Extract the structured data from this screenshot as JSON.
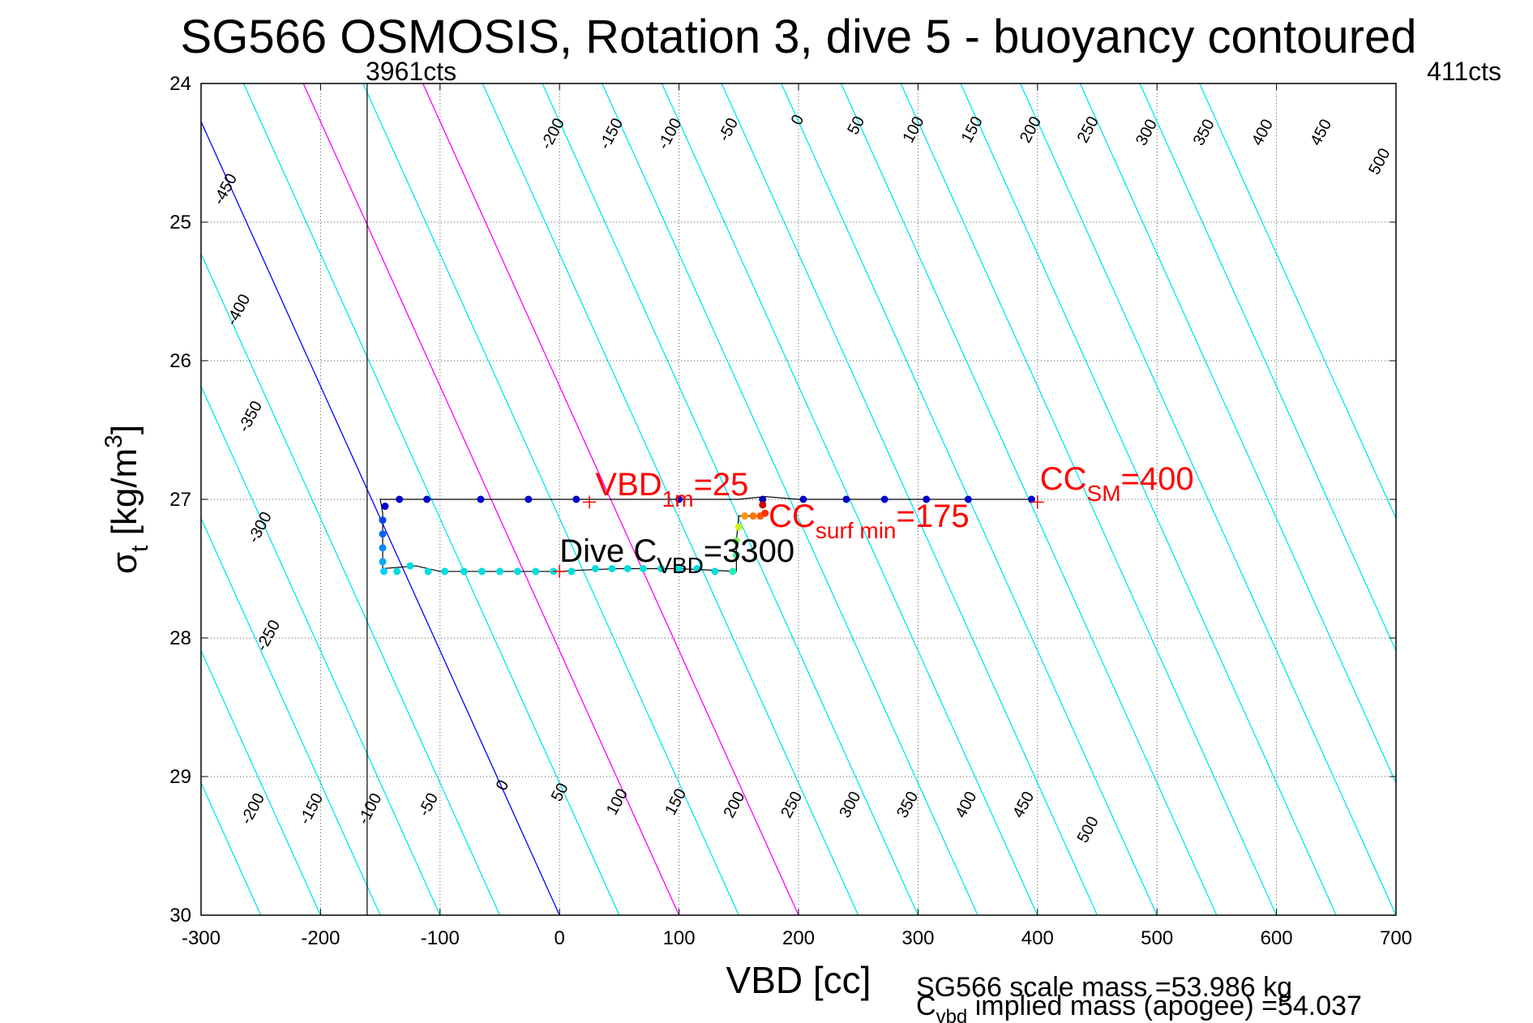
{
  "chart_data": {
    "type": "line",
    "title": "SG566 OSMOSIS, Rotation 3, dive 5 - buoyancy contoured",
    "xlabel": "VBD [cc]",
    "ylabel": {
      "main": "σ",
      "sub": "t",
      "rest": " [kg/m",
      "sup": "3",
      "end": "]"
    },
    "xlim": [
      -300,
      700
    ],
    "ylim": [
      24,
      30
    ],
    "y_reversed": true,
    "grid": true,
    "xticks": [
      -300,
      -200,
      -100,
      0,
      100,
      200,
      300,
      400,
      500,
      600,
      700
    ],
    "yticks": [
      24,
      25,
      26,
      27,
      28,
      29,
      30
    ],
    "contour_slope_cc_per_kgm3": 52.4,
    "contour_intercept_at_sigma30": 0,
    "contours": [
      {
        "value": -500,
        "color": "#00e5ee"
      },
      {
        "value": -450,
        "color": "#00e5ee"
      },
      {
        "value": -400,
        "color": "#00e5ee"
      },
      {
        "value": -350,
        "color": "#00e5ee"
      },
      {
        "value": -300,
        "color": "#00e5ee"
      },
      {
        "value": -250,
        "color": "#00e5ee"
      },
      {
        "value": -200,
        "color": "#00e5ee"
      },
      {
        "value": -150,
        "color": "#00e5ee"
      },
      {
        "value": -100,
        "color": "#00e5ee"
      },
      {
        "value": -50,
        "color": "#00e5ee"
      },
      {
        "value": 0,
        "color": "#0000ff"
      },
      {
        "value": 50,
        "color": "#00e5ee"
      },
      {
        "value": 100,
        "color": "#ff00ff"
      },
      {
        "value": 150,
        "color": "#00e5ee"
      },
      {
        "value": 200,
        "color": "#ff00ff"
      },
      {
        "value": 250,
        "color": "#00e5ee"
      },
      {
        "value": 300,
        "color": "#00e5ee"
      },
      {
        "value": 350,
        "color": "#00e5ee"
      },
      {
        "value": 400,
        "color": "#00e5ee"
      },
      {
        "value": 450,
        "color": "#00e5ee"
      },
      {
        "value": 500,
        "color": "#00e5ee"
      },
      {
        "value": 550,
        "color": "#00e5ee"
      },
      {
        "value": 600,
        "color": "#00e5ee"
      },
      {
        "value": 650,
        "color": "#00e5ee"
      },
      {
        "value": 700,
        "color": "#00e5ee"
      },
      {
        "value": 750,
        "color": "#00e5ee"
      },
      {
        "value": 800,
        "color": "#00e5ee"
      },
      {
        "value": 850,
        "color": "#00e5ee"
      }
    ],
    "contour_labels_top": [
      {
        "text": "-450",
        "x": -276,
        "y": 24.78
      },
      {
        "text": "-400",
        "x": -265,
        "y": 25.65
      },
      {
        "text": "-350",
        "x": -255,
        "y": 26.42
      },
      {
        "text": "-300",
        "x": -247,
        "y": 27.22
      },
      {
        "text": "-250",
        "x": -240,
        "y": 28.0
      },
      {
        "text": "-200",
        "x": -2,
        "y": 24.38
      },
      {
        "text": "-150",
        "x": 47,
        "y": 24.38
      },
      {
        "text": "-100",
        "x": 96,
        "y": 24.38
      },
      {
        "text": "-50",
        "x": 145,
        "y": 24.35
      },
      {
        "text": "0",
        "x": 203,
        "y": 24.28
      },
      {
        "text": "50",
        "x": 252,
        "y": 24.32
      },
      {
        "text": "100",
        "x": 300,
        "y": 24.35
      },
      {
        "text": "150",
        "x": 349,
        "y": 24.35
      },
      {
        "text": "200",
        "x": 398,
        "y": 24.35
      },
      {
        "text": "250",
        "x": 446,
        "y": 24.35
      },
      {
        "text": "300",
        "x": 495,
        "y": 24.37
      },
      {
        "text": "350",
        "x": 543,
        "y": 24.37
      },
      {
        "text": "400",
        "x": 592,
        "y": 24.37
      },
      {
        "text": "450",
        "x": 641,
        "y": 24.37
      },
      {
        "text": "500",
        "x": 690,
        "y": 24.58
      }
    ],
    "contour_labels_bottom": [
      {
        "text": "-200",
        "x": -253,
        "y": 29.25
      },
      {
        "text": "-150",
        "x": -204,
        "y": 29.25
      },
      {
        "text": "-100",
        "x": -155,
        "y": 29.25
      },
      {
        "text": "-50",
        "x": -106,
        "y": 29.22
      },
      {
        "text": "0",
        "x": -44,
        "y": 29.08
      },
      {
        "text": "50",
        "x": 4,
        "y": 29.13
      },
      {
        "text": "100",
        "x": 52,
        "y": 29.2
      },
      {
        "text": "150",
        "x": 101,
        "y": 29.2
      },
      {
        "text": "200",
        "x": 150,
        "y": 29.22
      },
      {
        "text": "250",
        "x": 198,
        "y": 29.22
      },
      {
        "text": "300",
        "x": 247,
        "y": 29.22
      },
      {
        "text": "350",
        "x": 295,
        "y": 29.22
      },
      {
        "text": "400",
        "x": 344,
        "y": 29.22
      },
      {
        "text": "450",
        "x": 392,
        "y": 29.22
      },
      {
        "text": "500",
        "x": 446,
        "y": 29.4
      }
    ],
    "vbd_min_line": {
      "x": -161,
      "label_left": "3961cts",
      "label_right": "411cts"
    },
    "dive_track": {
      "color": "#000000",
      "points": [
        [
          397,
          27.0
        ],
        [
          350,
          27.0
        ],
        [
          300,
          27.0
        ],
        [
          250,
          27.0
        ],
        [
          200,
          27.0
        ],
        [
          172,
          26.98
        ],
        [
          150,
          27.0
        ],
        [
          100,
          27.0
        ],
        [
          50,
          27.0
        ],
        [
          0,
          27.0
        ],
        [
          -50,
          27.0
        ],
        [
          -100,
          27.0
        ],
        [
          -150,
          27.0
        ],
        [
          -148,
          27.1
        ],
        [
          -148,
          27.3
        ],
        [
          -148,
          27.5
        ],
        [
          -120,
          27.48
        ],
        [
          -100,
          27.52
        ],
        [
          -50,
          27.52
        ],
        [
          0,
          27.52
        ],
        [
          20,
          27.51
        ],
        [
          50,
          27.5
        ],
        [
          100,
          27.5
        ],
        [
          148,
          27.52
        ],
        [
          148,
          27.3
        ],
        [
          150,
          27.12
        ],
        [
          172,
          27.12
        ]
      ]
    },
    "dive_points": [
      {
        "x": 395,
        "y": 27.0,
        "color": "#0000cc"
      },
      {
        "x": 342,
        "y": 27.0,
        "color": "#0000cc"
      },
      {
        "x": 307,
        "y": 27.0,
        "color": "#0000cc"
      },
      {
        "x": 272,
        "y": 27.0,
        "color": "#0000cc"
      },
      {
        "x": 240,
        "y": 27.0,
        "color": "#0000cc"
      },
      {
        "x": 204,
        "y": 27.0,
        "color": "#0000cc"
      },
      {
        "x": 170,
        "y": 27.0,
        "color": "#0000aa"
      },
      {
        "x": 100,
        "y": 27.0,
        "color": "#0000cc"
      },
      {
        "x": 14,
        "y": 27.0,
        "color": "#0000cc"
      },
      {
        "x": -26,
        "y": 27.0,
        "color": "#0000cc"
      },
      {
        "x": -66,
        "y": 27.0,
        "color": "#0000cc"
      },
      {
        "x": -111,
        "y": 27.0,
        "color": "#0000cc"
      },
      {
        "x": -134,
        "y": 27.0,
        "color": "#0000cc"
      },
      {
        "x": -146,
        "y": 27.05,
        "color": "#0000cc"
      },
      {
        "x": -148,
        "y": 27.15,
        "color": "#0044ff"
      },
      {
        "x": -148,
        "y": 27.25,
        "color": "#0066ff"
      },
      {
        "x": -148,
        "y": 27.35,
        "color": "#0088ff"
      },
      {
        "x": -148,
        "y": 27.45,
        "color": "#00aaff"
      },
      {
        "x": -147,
        "y": 27.52,
        "color": "#00ccff"
      },
      {
        "x": -136,
        "y": 27.52,
        "color": "#00dddd"
      },
      {
        "x": -125,
        "y": 27.48,
        "color": "#00dddd"
      },
      {
        "x": -110,
        "y": 27.52,
        "color": "#00dddd"
      },
      {
        "x": -96,
        "y": 27.52,
        "color": "#00dddd"
      },
      {
        "x": -80,
        "y": 27.52,
        "color": "#00dddd"
      },
      {
        "x": -65,
        "y": 27.52,
        "color": "#00dddd"
      },
      {
        "x": -50,
        "y": 27.52,
        "color": "#00dddd"
      },
      {
        "x": -35,
        "y": 27.52,
        "color": "#00dddd"
      },
      {
        "x": -20,
        "y": 27.52,
        "color": "#00dddd"
      },
      {
        "x": -5,
        "y": 27.52,
        "color": "#00dddd"
      },
      {
        "x": 10,
        "y": 27.52,
        "color": "#00dddd"
      },
      {
        "x": 30,
        "y": 27.5,
        "color": "#00dddd"
      },
      {
        "x": 44,
        "y": 27.5,
        "color": "#00dddd"
      },
      {
        "x": 57,
        "y": 27.5,
        "color": "#00dddd"
      },
      {
        "x": 70,
        "y": 27.5,
        "color": "#00dddd"
      },
      {
        "x": 85,
        "y": 27.5,
        "color": "#00dddd"
      },
      {
        "x": 100,
        "y": 27.5,
        "color": "#00dddd"
      },
      {
        "x": 115,
        "y": 27.5,
        "color": "#00dddd"
      },
      {
        "x": 130,
        "y": 27.52,
        "color": "#00dddd"
      },
      {
        "x": 145,
        "y": 27.52,
        "color": "#22eebb"
      },
      {
        "x": 148,
        "y": 27.4,
        "color": "#44ee99"
      },
      {
        "x": 148,
        "y": 27.3,
        "color": "#88ee55"
      },
      {
        "x": 150,
        "y": 27.2,
        "color": "#ccee22"
      },
      {
        "x": 155,
        "y": 27.12,
        "color": "#ff9900"
      },
      {
        "x": 162,
        "y": 27.12,
        "color": "#ff7700"
      },
      {
        "x": 168,
        "y": 27.12,
        "color": "#ff5500"
      },
      {
        "x": 172,
        "y": 27.1,
        "color": "#ff3300"
      },
      {
        "x": 170,
        "y": 27.04,
        "color": "#cc0000"
      }
    ],
    "markers": [
      {
        "x": 25,
        "y": 27.02,
        "color": "#ff0000"
      },
      {
        "x": 400,
        "y": 27.02,
        "color": "#ff0000"
      },
      {
        "x": 0,
        "y": 27.52,
        "color": "#ff0000"
      }
    ],
    "annotations": {
      "vbd_1m": {
        "main": "VBD",
        "sub": "1m",
        "tail": "=25",
        "x": 30,
        "y": 26.97,
        "color": "#ff0000"
      },
      "cc_surf_min": {
        "main": "CC",
        "sub": "surf min",
        "tail": "=175",
        "x": 175,
        "y": 27.2,
        "color": "#ff0000"
      },
      "cc_sm": {
        "main": "CC",
        "sub": "SM",
        "tail": "=400",
        "x": 402,
        "y": 26.93,
        "color": "#ff0000"
      },
      "dive_cvbd": {
        "main": "Dive C",
        "sub": "VBD",
        "tail": "=3300",
        "x": 0,
        "y": 27.45,
        "color": "#000000"
      }
    },
    "footer": {
      "scale_mass": "SG566 scale mass =53.986 kg",
      "implied_mass_main": "C",
      "implied_mass_sub": "vbd",
      "implied_mass_rest": " implied mass (apogee) =54.037"
    }
  },
  "colors": {
    "axes": "#000000",
    "grid": "#555555",
    "contour": "#00e5ee",
    "zero_contour": "#0000ff",
    "highlight_contour": "#ff00ff",
    "annotation": "#ff0000"
  }
}
